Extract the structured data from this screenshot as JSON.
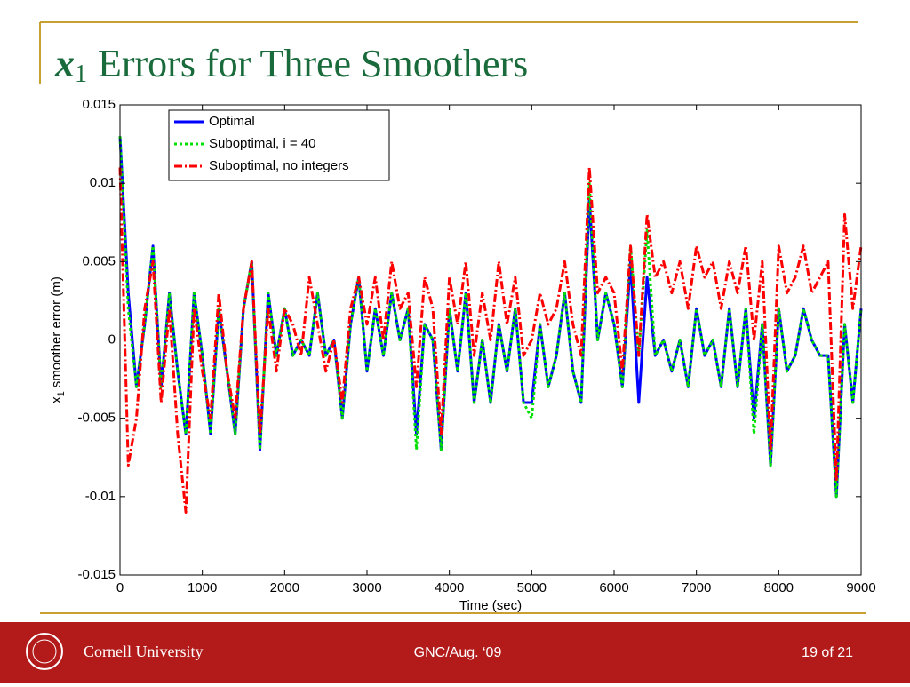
{
  "chart_data": {
    "type": "line",
    "title_var": "x",
    "title_sub": "1",
    "title_text": "Errors for Three Smoothers",
    "xlabel": "Time (sec)",
    "ylabel_var": "x",
    "ylabel_sub": "1",
    "ylabel_text": "smoother error (m)",
    "x": [
      0,
      100,
      200,
      300,
      400,
      500,
      600,
      700,
      800,
      900,
      1000,
      1100,
      1200,
      1300,
      1400,
      1500,
      1600,
      1700,
      1800,
      1900,
      2000,
      2100,
      2200,
      2300,
      2400,
      2500,
      2600,
      2700,
      2800,
      2900,
      3000,
      3100,
      3200,
      3300,
      3400,
      3500,
      3600,
      3700,
      3800,
      3900,
      4000,
      4100,
      4200,
      4300,
      4400,
      4500,
      4600,
      4700,
      4800,
      4900,
      5000,
      5100,
      5200,
      5300,
      5400,
      5500,
      5600,
      5700,
      5800,
      5900,
      6000,
      6100,
      6200,
      6300,
      6400,
      6500,
      6600,
      6700,
      6800,
      6900,
      7000,
      7100,
      7200,
      7300,
      7400,
      7500,
      7600,
      7700,
      7800,
      7900,
      8000,
      8100,
      8200,
      8300,
      8400,
      8500,
      8600,
      8700,
      8800,
      8900,
      9000
    ],
    "series": [
      {
        "name": "Optimal",
        "color": "#0000ff",
        "line_style": "solid",
        "values": [
          0.013,
          0.003,
          -0.003,
          0.001,
          0.006,
          -0.003,
          0.003,
          -0.002,
          -0.006,
          0.003,
          -0.001,
          -0.006,
          0.002,
          -0.002,
          -0.006,
          0.002,
          0.005,
          -0.007,
          0.003,
          -0.001,
          0.002,
          -0.001,
          0,
          -0.001,
          0.003,
          -0.001,
          0,
          -0.005,
          0.001,
          0.004,
          -0.002,
          0.002,
          -0.001,
          0.003,
          0,
          0.002,
          -0.006,
          0.001,
          0,
          -0.007,
          0.002,
          -0.002,
          0.003,
          -0.004,
          0,
          -0.004,
          0.001,
          -0.002,
          0.002,
          -0.004,
          -0.004,
          0.001,
          -0.003,
          -0.001,
          0.003,
          -0.002,
          -0.004,
          0.009,
          0,
          0.003,
          0.001,
          -0.003,
          0.005,
          -0.004,
          0.004,
          -0.001,
          0,
          -0.002,
          0,
          -0.003,
          0.002,
          -0.001,
          0,
          -0.003,
          0.002,
          -0.003,
          0.002,
          -0.005,
          0.001,
          -0.008,
          0.002,
          -0.002,
          -0.001,
          0.002,
          0,
          -0.001,
          -0.001,
          -0.01,
          0.001,
          -0.004,
          0.002
        ]
      },
      {
        "name": "Suboptimal, i = 40",
        "color": "#00e000",
        "line_style": "dotted",
        "values": [
          0.013,
          0.002,
          -0.003,
          0.001,
          0.006,
          -0.003,
          0.003,
          -0.002,
          -0.006,
          0.003,
          -0.001,
          -0.006,
          0.002,
          -0.002,
          -0.006,
          0.002,
          0.005,
          -0.007,
          0.003,
          -0.001,
          0.002,
          -0.001,
          0,
          -0.001,
          0.003,
          -0.001,
          0,
          -0.005,
          0.001,
          0.004,
          -0.002,
          0.002,
          -0.001,
          0.003,
          0,
          0.002,
          -0.007,
          0.001,
          0,
          -0.007,
          0.002,
          -0.002,
          0.003,
          -0.004,
          0,
          -0.004,
          0.001,
          -0.002,
          0.002,
          -0.004,
          -0.005,
          0.001,
          -0.003,
          -0.001,
          0.003,
          -0.002,
          -0.004,
          0.01,
          0,
          0.003,
          0.001,
          -0.003,
          0.006,
          -0.001,
          0.007,
          -0.001,
          0,
          -0.002,
          0,
          -0.003,
          0.002,
          -0.001,
          0,
          -0.003,
          0.002,
          -0.003,
          0.002,
          -0.006,
          0.001,
          -0.008,
          0.002,
          -0.002,
          -0.001,
          0.002,
          0,
          -0.001,
          -0.001,
          -0.01,
          0.001,
          -0.004,
          0.002
        ]
      },
      {
        "name": "Suboptimal, no integers",
        "color": "#ff0000",
        "line_style": "dashdot",
        "values": [
          0.011,
          -0.008,
          -0.005,
          0.002,
          0.005,
          -0.004,
          0.002,
          -0.006,
          -0.011,
          0.002,
          -0.002,
          -0.005,
          0.003,
          -0.002,
          -0.005,
          0.002,
          0.005,
          -0.006,
          0.002,
          -0.002,
          0.002,
          0.001,
          -0.001,
          0.004,
          0.001,
          -0.002,
          0,
          -0.004,
          0.002,
          0.004,
          0.001,
          0.004,
          0,
          0.005,
          0.002,
          0.003,
          -0.003,
          0.004,
          0.002,
          -0.006,
          0.004,
          0.001,
          0.005,
          -0.001,
          0.003,
          0,
          0.005,
          0.001,
          0.004,
          -0.001,
          0,
          0.003,
          0.001,
          0.002,
          0.005,
          0.001,
          -0.001,
          0.011,
          0.003,
          0.004,
          0.003,
          -0.002,
          0.006,
          -0.001,
          0.008,
          0.004,
          0.005,
          0.003,
          0.005,
          0.002,
          0.006,
          0.004,
          0.005,
          0.002,
          0.005,
          0.003,
          0.006,
          0,
          0.005,
          -0.007,
          0.006,
          0.003,
          0.004,
          0.006,
          0.003,
          0.004,
          0.005,
          -0.009,
          0.008,
          0.002,
          0.006
        ]
      }
    ],
    "xlim": [
      0,
      9000
    ],
    "xticks": [
      0,
      1000,
      2000,
      3000,
      4000,
      5000,
      6000,
      7000,
      8000,
      9000
    ],
    "ylim": [
      -0.015,
      0.015
    ],
    "yticks": [
      0.015,
      0.01,
      0.005,
      0,
      -0.005,
      -0.01,
      -0.015
    ],
    "grid": false,
    "legend": "upper left"
  },
  "footer": {
    "institution": "Cornell University",
    "event": "GNC/Aug. ‘09",
    "page": "19 of 21"
  }
}
